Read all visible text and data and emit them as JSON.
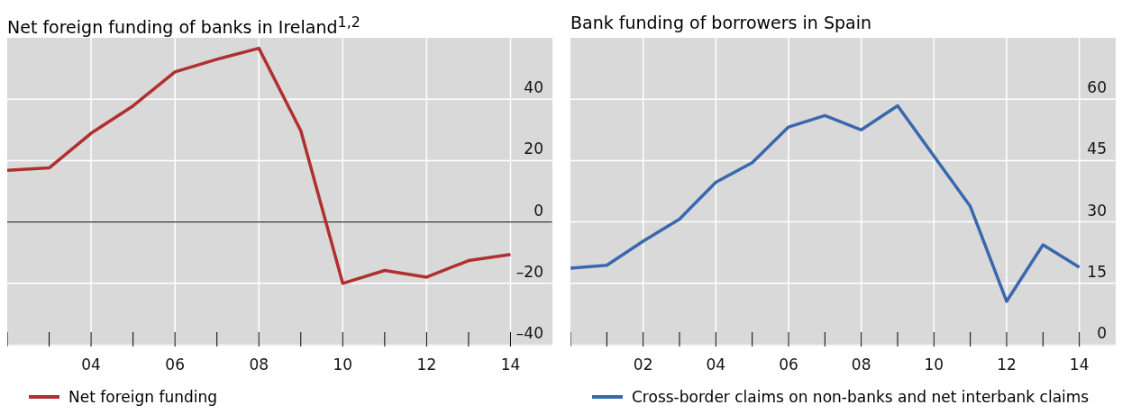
{
  "chart_data": [
    {
      "type": "line",
      "title": "Net foreign funding of banks in Ireland$^{1,2}$",
      "x": [
        2002,
        2003,
        2004,
        2005,
        2006,
        2007,
        2008,
        2009,
        2010,
        2011,
        2012,
        2013,
        2014
      ],
      "series": [
        {
          "name": "Net foreign funding",
          "color": "#b03030",
          "values": [
            16.8,
            17.6,
            28.9,
            37.8,
            48.9,
            53,
            56.6,
            29.7,
            -20,
            -15.8,
            -18,
            -12.6,
            -10.6
          ]
        }
      ],
      "xlim": [
        2002,
        2015
      ],
      "xticks": [
        {
          "value": 2002,
          "label": null
        },
        {
          "value": 2003,
          "label": null
        },
        {
          "value": 2004,
          "label": "04"
        },
        {
          "value": 2005,
          "label": null
        },
        {
          "value": 2006,
          "label": "06"
        },
        {
          "value": 2007,
          "label": null
        },
        {
          "value": 2008,
          "label": "08"
        },
        {
          "value": 2009,
          "label": null
        },
        {
          "value": 2010,
          "label": "10"
        },
        {
          "value": 2011,
          "label": null
        },
        {
          "value": 2012,
          "label": "12"
        },
        {
          "value": 2013,
          "label": null
        },
        {
          "value": 2014,
          "label": "14"
        }
      ],
      "ylim": [
        -40,
        60
      ],
      "yticks": [
        {
          "value": -40,
          "label": "–40"
        },
        {
          "value": -20,
          "label": "–20"
        },
        0,
        20,
        40
      ],
      "ref_lines": [
        {
          "axis": "y",
          "value": 0,
          "color": "#333333"
        }
      ],
      "grid": true,
      "legend": "bottom",
      "line_style": "solid",
      "marker": "none"
    },
    {
      "type": "line",
      "title": "Bank funding of borrowers in Spain",
      "x": [
        2000,
        2001,
        2002,
        2003,
        2004,
        2005,
        2006,
        2007,
        2008,
        2009,
        2010,
        2011,
        2012,
        2013,
        2014
      ],
      "series": [
        {
          "name": "Cross-border claims on non-banks and net interbank claims",
          "color": "#3a68ae",
          "values": [
            18.7,
            19.4,
            25.3,
            30.7,
            39.7,
            44.5,
            53.2,
            56,
            52.5,
            58.4,
            46.1,
            33.8,
            10.6,
            24.4,
            18.9
          ]
        }
      ],
      "xlim": [
        2000,
        2015
      ],
      "xticks": [
        {
          "value": 2000,
          "label": null
        },
        {
          "value": 2001,
          "label": null
        },
        {
          "value": 2002,
          "label": "02"
        },
        {
          "value": 2003,
          "label": null
        },
        {
          "value": 2004,
          "label": "04"
        },
        {
          "value": 2005,
          "label": null
        },
        {
          "value": 2006,
          "label": "06"
        },
        {
          "value": 2007,
          "label": null
        },
        {
          "value": 2008,
          "label": "08"
        },
        {
          "value": 2009,
          "label": null
        },
        {
          "value": 2010,
          "label": "10"
        },
        {
          "value": 2011,
          "label": null
        },
        {
          "value": 2012,
          "label": "12"
        },
        {
          "value": 2013,
          "label": null
        },
        {
          "value": 2014,
          "label": "14"
        }
      ],
      "ylim": [
        0,
        75
      ],
      "yticks": [
        0,
        15,
        30,
        45,
        60
      ],
      "grid": true,
      "legend": "bottom",
      "line_style": "solid",
      "marker": "none"
    }
  ]
}
